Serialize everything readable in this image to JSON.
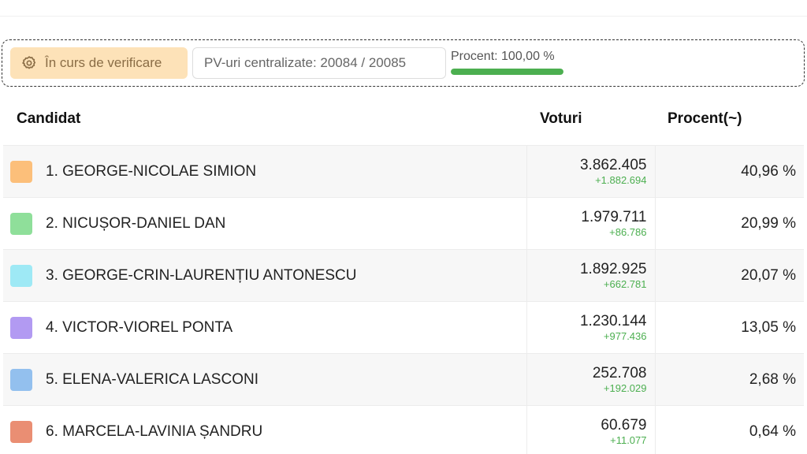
{
  "status": {
    "verify_label": "În curs de verificare",
    "pv_label": "PV-uri centralizate: 20084 / 20085",
    "procent_label": "Procent: 100,00 %",
    "progress_fraction": 1.0,
    "progress_color": "#4caf50"
  },
  "table": {
    "headers": {
      "candidate": "Candidat",
      "votes": "Voturi",
      "percent": "Procent(~)"
    },
    "rows": [
      {
        "name": "1. GEORGE-NICOLAE SIMION",
        "votes": "3.862.405",
        "diff": "+1.882.694",
        "percent": "40,96 %",
        "color": "#fcbf7a"
      },
      {
        "name": "2. NICUȘOR-DANIEL DAN",
        "votes": "1.979.711",
        "diff": "+86.786",
        "percent": "20,99 %",
        "color": "#8fdf9a"
      },
      {
        "name": "3. GEORGE-CRIN-LAURENȚIU ANTONESCU",
        "votes": "1.892.925",
        "diff": "+662.781",
        "percent": "20,07 %",
        "color": "#9ee9f5"
      },
      {
        "name": "4. VICTOR-VIOREL PONTA",
        "votes": "1.230.144",
        "diff": "+977.436",
        "percent": "13,05 %",
        "color": "#b29af2"
      },
      {
        "name": "5. ELENA-VALERICA LASCONI",
        "votes": "252.708",
        "diff": "+192.029",
        "percent": "2,68 %",
        "color": "#93c0ee"
      },
      {
        "name": "6. MARCELA-LAVINIA ȘANDRU",
        "votes": "60.679",
        "diff": "+11.077",
        "percent": "0,64 %",
        "color": "#ea8e73"
      }
    ]
  }
}
